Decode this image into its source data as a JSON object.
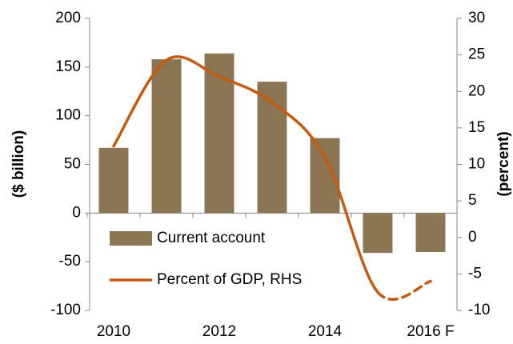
{
  "chart_data": {
    "type": "bar_line",
    "categories": [
      "2010",
      null,
      "2012",
      null,
      "2014",
      null,
      "2016 F"
    ],
    "series": [
      {
        "name": "Current account",
        "type": "bar",
        "color": "#8c7553",
        "values": [
          67,
          158,
          164,
          135,
          77,
          -41,
          -40
        ]
      },
      {
        "name": "Percent of GDP, RHS",
        "type": "line",
        "axis": "y2",
        "color": "#c55a11",
        "values": [
          12.5,
          24.3,
          22,
          18.5,
          11,
          -7.5,
          -6
        ],
        "dashed_from": 5
      }
    ],
    "ylabel": "($ billion)",
    "y2label": "(percent)",
    "ylim": [
      -100,
      200
    ],
    "yticks": [
      -100,
      -50,
      0,
      50,
      100,
      150,
      200
    ],
    "y2lim": [
      -10,
      30
    ],
    "y2ticks": [
      -10,
      -5,
      0,
      5,
      10,
      15,
      20,
      25,
      30
    ]
  }
}
